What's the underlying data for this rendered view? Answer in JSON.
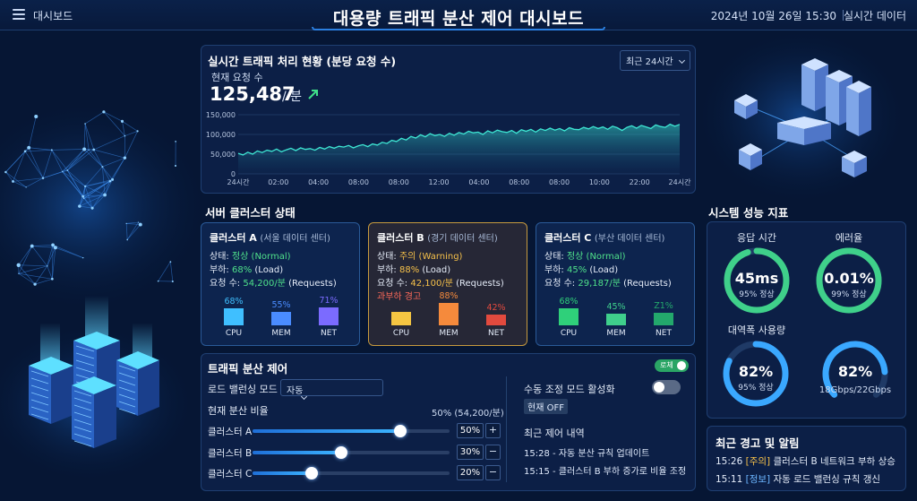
{
  "header": {
    "menu_label": "대시보드",
    "title": "대용량 트래픽 분산 제어 대시보드",
    "datetime": "2024년 10월 26일 15:30",
    "realtime_label": "실시간 데이터"
  },
  "traffic": {
    "title": "실시간 트래픽 처리 현황 (분당 요청 수)",
    "range_select": "최근 24시간",
    "current_label": "현재 요청 수",
    "current_value": "125,487",
    "current_unit": "/ 분",
    "trend": "up"
  },
  "chart_data": {
    "type": "area",
    "title": "실시간 트래픽 처리 현황 (분당 요청 수)",
    "x_ticks": [
      "24시간",
      "02:00",
      "04:00",
      "08:00",
      "08:00",
      "12:00",
      "04:00",
      "08:00",
      "08:00",
      "10:00",
      "22:00",
      "24시간"
    ],
    "y_ticks": [
      "0",
      "50,000",
      "100,000",
      "150,000"
    ],
    "ylim": [
      0,
      150000
    ],
    "grid": true,
    "series": [
      {
        "values": [
          52000,
          48000,
          55000,
          50000,
          58000,
          54000,
          60000,
          57000,
          63000,
          56000,
          61000,
          65000,
          59000,
          66000,
          62000,
          64000,
          60000,
          67000,
          63000,
          69000,
          65000,
          70000,
          68000,
          72000,
          66000,
          71000,
          74000,
          69000,
          76000,
          73000,
          80000,
          77000,
          85000,
          82000,
          90000,
          86000,
          95000,
          91000,
          99000,
          94000,
          102000,
          97000,
          100000,
          95000,
          103000,
          98000,
          105000,
          101000,
          108000,
          104000,
          106000,
          100000,
          109000,
          104000,
          111000,
          107000,
          105000,
          110000,
          103000,
          112000,
          108000,
          113000,
          106000,
          114000,
          110000,
          116000,
          111000,
          115000,
          109000,
          117000,
          113000,
          112000,
          118000,
          114000,
          120000,
          115000,
          119000,
          113000,
          121000,
          117000,
          110000,
          118000,
          122000,
          116000,
          123000,
          119000,
          115000,
          124000,
          120000,
          118000,
          126000,
          121000,
          125487
        ]
      }
    ]
  },
  "clusters_section": {
    "title": "서버 클러스터 상태",
    "cards": [
      {
        "name": "클러스터 A",
        "location": "(서울 데이터 센터)",
        "status_label": "상태:",
        "status": "정상 (Normal)",
        "load_label": "부하:",
        "load": "68%",
        "load_suffix": "(Load)",
        "requests_label": "요청 수:",
        "requests": "54,200/분",
        "requests_suffix": "(Requests)",
        "warning": "",
        "metrics": [
          {
            "label": "CPU",
            "pct": "68%",
            "value": 68,
            "color": "#3fbfff"
          },
          {
            "label": "MEM",
            "pct": "55%",
            "value": 55,
            "color": "#4a8cff"
          },
          {
            "label": "NET",
            "pct": "71%",
            "value": 71,
            "color": "#7b6bff"
          }
        ]
      },
      {
        "name": "클러스터 B",
        "location": "(경기 데이터 센터)",
        "status_label": "상태:",
        "status": "주의 (Warning)",
        "load_label": "부하:",
        "load": "88%",
        "load_suffix": "(Load)",
        "requests_label": "요청 수:",
        "requests": "42,100/분",
        "requests_suffix": "(Requests)",
        "warning": "과부하 경고",
        "metrics": [
          {
            "label": "CPU",
            "pct": "",
            "value": 55,
            "color": "#f4c542"
          },
          {
            "label": "MEM",
            "pct": "88%",
            "value": 88,
            "color": "#f58a3c"
          },
          {
            "label": "NET",
            "pct": "42%",
            "value": 42,
            "color": "#e24a3e"
          }
        ]
      },
      {
        "name": "클러스터 C",
        "location": "(부산 데이터 센터)",
        "status_label": "상태:",
        "status": "정상 (Normal)",
        "load_label": "부하:",
        "load": "45%",
        "load_suffix": "(Load)",
        "requests_label": "요청 수:",
        "requests": "29,187/분",
        "requests_suffix": "(Requests)",
        "warning": "",
        "metrics": [
          {
            "label": "CPU",
            "pct": "68%",
            "value": 68,
            "color": "#2fd07a"
          },
          {
            "label": "MEM",
            "pct": "45%",
            "value": 45,
            "color": "#3fcf8c"
          },
          {
            "label": "NET",
            "pct": "Z1%",
            "value": 50,
            "color": "#23a86c"
          }
        ]
      }
    ]
  },
  "control": {
    "title": "트래픽 분산 제어",
    "toggle_label": "로체",
    "lb_mode_label": "로드 밸런싱 모드",
    "lb_mode_value": "자동",
    "ratio_label": "현재 분산 비율",
    "ratio_value": "50% (54,200/분)",
    "sliders": [
      {
        "label": "클러스터 A",
        "value": "50%",
        "level": 0.5
      },
      {
        "label": "클러스터 B",
        "value": "30%",
        "level": 0.3
      },
      {
        "label": "클러스터 C",
        "value": "20%",
        "level": 0.2
      }
    ],
    "plus": "+",
    "minus": "−",
    "manual_label": "수동 조정 모드 활성화",
    "manual_state": "현재 OFF",
    "history_title": "최근 제어 내역",
    "history": [
      "15:28 - 자동 분산 규칙 업데이트",
      "15:15 - 클러스터 B 부하 증가로 비율 조정"
    ]
  },
  "perf": {
    "title": "시스템 성능 지표",
    "response": {
      "label": "응답 시간",
      "value": "45ms",
      "sub": "95% 정상",
      "level": 0.95
    },
    "error": {
      "label": "에러율",
      "value": "0.01%",
      "sub": "99% 정상",
      "level": 0.99
    },
    "bandwidth_usage": {
      "label": "대역폭 사용량",
      "value": "82%",
      "sub": "95% 정상",
      "level": 0.82
    },
    "bandwidth": {
      "value": "82%",
      "sub": "18Gbps/22Gbps",
      "level": 0.82
    }
  },
  "alerts": {
    "title": "최근 경고 및 알림",
    "items": [
      {
        "time": "15:26",
        "tag": "[주의]",
        "text": "클러스터 B 네트워크 부하 상승"
      },
      {
        "time": "15:11",
        "tag": "[정보]",
        "text": "자동 로드 밸런싱 규칙 갱신"
      }
    ]
  }
}
